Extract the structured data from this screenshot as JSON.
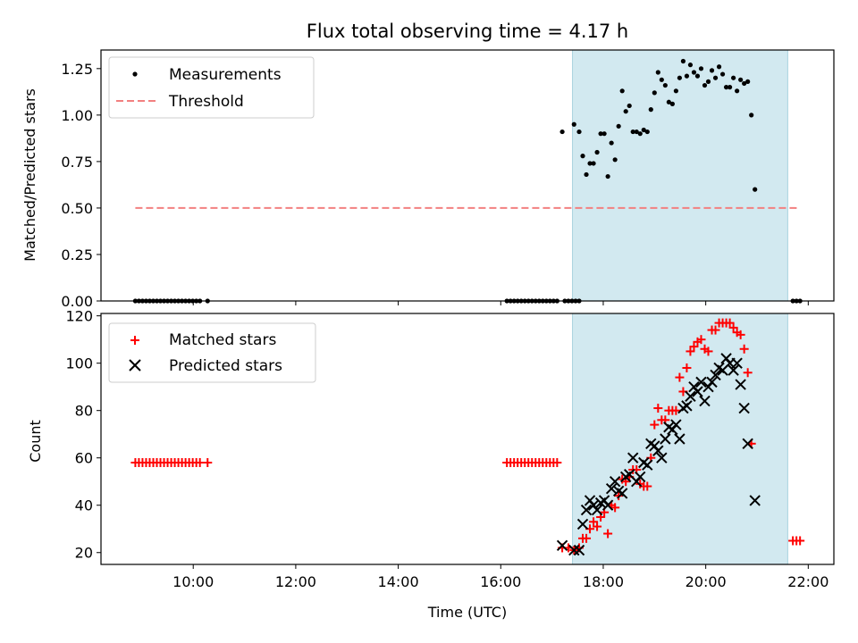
{
  "chart_data": [
    {
      "type": "scatter",
      "title": "Flux total observing time = 4.17 h",
      "xlabel": "",
      "ylabel": "Matched/Predicted stars",
      "xlim": [
        8.2,
        22.5
      ],
      "ylim": [
        0,
        1.35
      ],
      "yticks": [
        0,
        0.25,
        0.5,
        0.75,
        1.0,
        1.25
      ],
      "ytick_labels": [
        "0.00",
        "0.25",
        "0.50",
        "0.75",
        "1.00",
        "1.25"
      ],
      "shaded_span": [
        17.4,
        21.6
      ],
      "shaded_color": "#d2e9f0",
      "legend_location": "upper-left",
      "series": [
        {
          "name": "Measurements",
          "marker": "dot",
          "color": "#000000",
          "points": [
            [
              8.87,
              0
            ],
            [
              8.94,
              0
            ],
            [
              9.01,
              0
            ],
            [
              9.08,
              0
            ],
            [
              9.15,
              0
            ],
            [
              9.22,
              0
            ],
            [
              9.29,
              0
            ],
            [
              9.36,
              0
            ],
            [
              9.43,
              0
            ],
            [
              9.5,
              0
            ],
            [
              9.57,
              0
            ],
            [
              9.64,
              0
            ],
            [
              9.71,
              0
            ],
            [
              9.78,
              0
            ],
            [
              9.85,
              0
            ],
            [
              9.92,
              0
            ],
            [
              9.99,
              0
            ],
            [
              10.06,
              0
            ],
            [
              10.13,
              0
            ],
            [
              10.28,
              0
            ],
            [
              16.12,
              0
            ],
            [
              16.19,
              0
            ],
            [
              16.26,
              0
            ],
            [
              16.33,
              0
            ],
            [
              16.4,
              0
            ],
            [
              16.47,
              0
            ],
            [
              16.54,
              0
            ],
            [
              16.61,
              0
            ],
            [
              16.68,
              0
            ],
            [
              16.75,
              0
            ],
            [
              16.82,
              0
            ],
            [
              16.89,
              0
            ],
            [
              16.96,
              0
            ],
            [
              17.03,
              0
            ],
            [
              17.1,
              0
            ],
            [
              17.25,
              0
            ],
            [
              17.32,
              0
            ],
            [
              17.39,
              0
            ],
            [
              17.46,
              0
            ],
            [
              17.53,
              0
            ],
            [
              17.2,
              0.91
            ],
            [
              17.43,
              0.95
            ],
            [
              17.53,
              0.91
            ],
            [
              17.6,
              0.78
            ],
            [
              17.67,
              0.68
            ],
            [
              17.74,
              0.74
            ],
            [
              17.81,
              0.74
            ],
            [
              17.88,
              0.8
            ],
            [
              17.95,
              0.9
            ],
            [
              18.02,
              0.9
            ],
            [
              18.09,
              0.67
            ],
            [
              18.16,
              0.85
            ],
            [
              18.23,
              0.76
            ],
            [
              18.3,
              0.94
            ],
            [
              18.37,
              1.13
            ],
            [
              18.44,
              1.02
            ],
            [
              18.51,
              1.05
            ],
            [
              18.58,
              0.91
            ],
            [
              18.65,
              0.91
            ],
            [
              18.72,
              0.9
            ],
            [
              18.79,
              0.92
            ],
            [
              18.86,
              0.91
            ],
            [
              18.93,
              1.03
            ],
            [
              19.0,
              1.12
            ],
            [
              19.07,
              1.23
            ],
            [
              19.14,
              1.19
            ],
            [
              19.21,
              1.16
            ],
            [
              19.28,
              1.07
            ],
            [
              19.35,
              1.06
            ],
            [
              19.42,
              1.13
            ],
            [
              19.49,
              1.2
            ],
            [
              19.56,
              1.29
            ],
            [
              19.63,
              1.21
            ],
            [
              19.7,
              1.27
            ],
            [
              19.77,
              1.23
            ],
            [
              19.84,
              1.21
            ],
            [
              19.91,
              1.25
            ],
            [
              19.98,
              1.16
            ],
            [
              20.05,
              1.18
            ],
            [
              20.12,
              1.24
            ],
            [
              20.19,
              1.2
            ],
            [
              20.26,
              1.26
            ],
            [
              20.33,
              1.22
            ],
            [
              20.4,
              1.15
            ],
            [
              20.47,
              1.15
            ],
            [
              20.54,
              1.2
            ],
            [
              20.61,
              1.13
            ],
            [
              20.68,
              1.19
            ],
            [
              20.75,
              1.17
            ],
            [
              20.82,
              1.18
            ],
            [
              20.89,
              1.0
            ],
            [
              20.96,
              0.6
            ],
            [
              21.7,
              0
            ],
            [
              21.77,
              0
            ],
            [
              21.84,
              0
            ]
          ]
        },
        {
          "name": "Threshold",
          "marker": "dashed-line",
          "color": "#f28080",
          "x": [
            8.87,
            21.84
          ],
          "y": [
            0.5,
            0.5
          ]
        }
      ]
    },
    {
      "type": "scatter",
      "title": "",
      "xlabel": "Time (UTC)",
      "ylabel": "Count",
      "xlim": [
        8.2,
        22.5
      ],
      "ylim": [
        15,
        121
      ],
      "yticks": [
        20,
        40,
        60,
        80,
        100,
        120
      ],
      "ytick_labels": [
        "20",
        "40",
        "60",
        "80",
        "100",
        "120"
      ],
      "xticks": [
        10,
        12,
        14,
        16,
        18,
        20,
        22
      ],
      "xtick_labels": [
        "10:00",
        "12:00",
        "14:00",
        "16:00",
        "18:00",
        "20:00",
        "22:00"
      ],
      "shaded_span": [
        17.4,
        21.6
      ],
      "shaded_color": "#d2e9f0",
      "legend_location": "upper-left",
      "series": [
        {
          "name": "Matched stars",
          "marker": "plus",
          "color": "#ff0000",
          "points": [
            [
              8.87,
              58
            ],
            [
              8.94,
              58
            ],
            [
              9.01,
              58
            ],
            [
              9.08,
              58
            ],
            [
              9.15,
              58
            ],
            [
              9.22,
              58
            ],
            [
              9.29,
              58
            ],
            [
              9.36,
              58
            ],
            [
              9.43,
              58
            ],
            [
              9.5,
              58
            ],
            [
              9.57,
              58
            ],
            [
              9.64,
              58
            ],
            [
              9.71,
              58
            ],
            [
              9.78,
              58
            ],
            [
              9.85,
              58
            ],
            [
              9.92,
              58
            ],
            [
              9.99,
              58
            ],
            [
              10.06,
              58
            ],
            [
              10.13,
              58
            ],
            [
              10.28,
              58
            ],
            [
              16.12,
              58
            ],
            [
              16.19,
              58
            ],
            [
              16.26,
              58
            ],
            [
              16.33,
              58
            ],
            [
              16.4,
              58
            ],
            [
              16.47,
              58
            ],
            [
              16.54,
              58
            ],
            [
              16.61,
              58
            ],
            [
              16.68,
              58
            ],
            [
              16.75,
              58
            ],
            [
              16.82,
              58
            ],
            [
              16.89,
              58
            ],
            [
              16.96,
              58
            ],
            [
              17.03,
              58
            ],
            [
              17.1,
              58
            ],
            [
              17.2,
              22
            ],
            [
              17.32,
              22
            ],
            [
              17.43,
              21
            ],
            [
              17.53,
              22
            ],
            [
              17.6,
              26
            ],
            [
              17.67,
              26
            ],
            [
              17.74,
              30
            ],
            [
              17.81,
              33
            ],
            [
              17.88,
              31
            ],
            [
              17.95,
              35
            ],
            [
              18.02,
              37
            ],
            [
              18.09,
              28
            ],
            [
              18.16,
              40
            ],
            [
              18.23,
              39
            ],
            [
              18.3,
              44
            ],
            [
              18.37,
              51
            ],
            [
              18.44,
              50
            ],
            [
              18.51,
              52
            ],
            [
              18.58,
              55
            ],
            [
              18.65,
              55
            ],
            [
              18.72,
              49
            ],
            [
              18.79,
              48
            ],
            [
              18.86,
              48
            ],
            [
              18.93,
              60
            ],
            [
              19.0,
              74
            ],
            [
              19.07,
              81
            ],
            [
              19.14,
              76
            ],
            [
              19.21,
              76
            ],
            [
              19.28,
              80
            ],
            [
              19.35,
              80
            ],
            [
              19.42,
              80
            ],
            [
              19.49,
              94
            ],
            [
              19.56,
              88
            ],
            [
              19.63,
              98
            ],
            [
              19.7,
              105
            ],
            [
              19.77,
              107
            ],
            [
              19.84,
              109
            ],
            [
              19.91,
              110
            ],
            [
              19.98,
              106
            ],
            [
              20.05,
              105
            ],
            [
              20.12,
              114
            ],
            [
              20.19,
              114
            ],
            [
              20.26,
              117
            ],
            [
              20.33,
              117
            ],
            [
              20.4,
              117
            ],
            [
              20.47,
              117
            ],
            [
              20.54,
              115
            ],
            [
              20.61,
              113
            ],
            [
              20.68,
              112
            ],
            [
              20.75,
              106
            ],
            [
              20.82,
              96
            ],
            [
              20.89,
              66
            ],
            [
              21.7,
              25
            ],
            [
              21.77,
              25
            ],
            [
              21.84,
              25
            ]
          ]
        },
        {
          "name": "Predicted stars",
          "marker": "x",
          "color": "#000000",
          "points": [
            [
              17.2,
              23
            ],
            [
              17.43,
              21
            ],
            [
              17.53,
              21
            ],
            [
              17.6,
              32
            ],
            [
              17.67,
              38
            ],
            [
              17.74,
              42
            ],
            [
              17.81,
              40
            ],
            [
              17.88,
              38
            ],
            [
              17.95,
              41
            ],
            [
              18.02,
              42
            ],
            [
              18.09,
              40
            ],
            [
              18.16,
              47
            ],
            [
              18.23,
              50
            ],
            [
              18.3,
              46
            ],
            [
              18.37,
              45
            ],
            [
              18.44,
              52
            ],
            [
              18.51,
              53
            ],
            [
              18.58,
              60
            ],
            [
              18.65,
              50
            ],
            [
              18.72,
              52
            ],
            [
              18.79,
              58
            ],
            [
              18.86,
              57
            ],
            [
              18.93,
              66
            ],
            [
              19.0,
              65
            ],
            [
              19.07,
              63
            ],
            [
              19.14,
              60
            ],
            [
              19.21,
              68
            ],
            [
              19.28,
              73
            ],
            [
              19.35,
              72
            ],
            [
              19.42,
              74
            ],
            [
              19.49,
              68
            ],
            [
              19.56,
              81
            ],
            [
              19.63,
              82
            ],
            [
              19.7,
              86
            ],
            [
              19.77,
              90
            ],
            [
              19.84,
              88
            ],
            [
              19.91,
              92
            ],
            [
              19.98,
              84
            ],
            [
              20.05,
              90
            ],
            [
              20.12,
              92
            ],
            [
              20.19,
              95
            ],
            [
              20.26,
              98
            ],
            [
              20.33,
              97
            ],
            [
              20.4,
              102
            ],
            [
              20.47,
              100
            ],
            [
              20.54,
              97
            ],
            [
              20.61,
              100
            ],
            [
              20.68,
              91
            ],
            [
              20.75,
              81
            ],
            [
              20.82,
              66
            ],
            [
              20.96,
              42
            ]
          ]
        }
      ]
    }
  ]
}
